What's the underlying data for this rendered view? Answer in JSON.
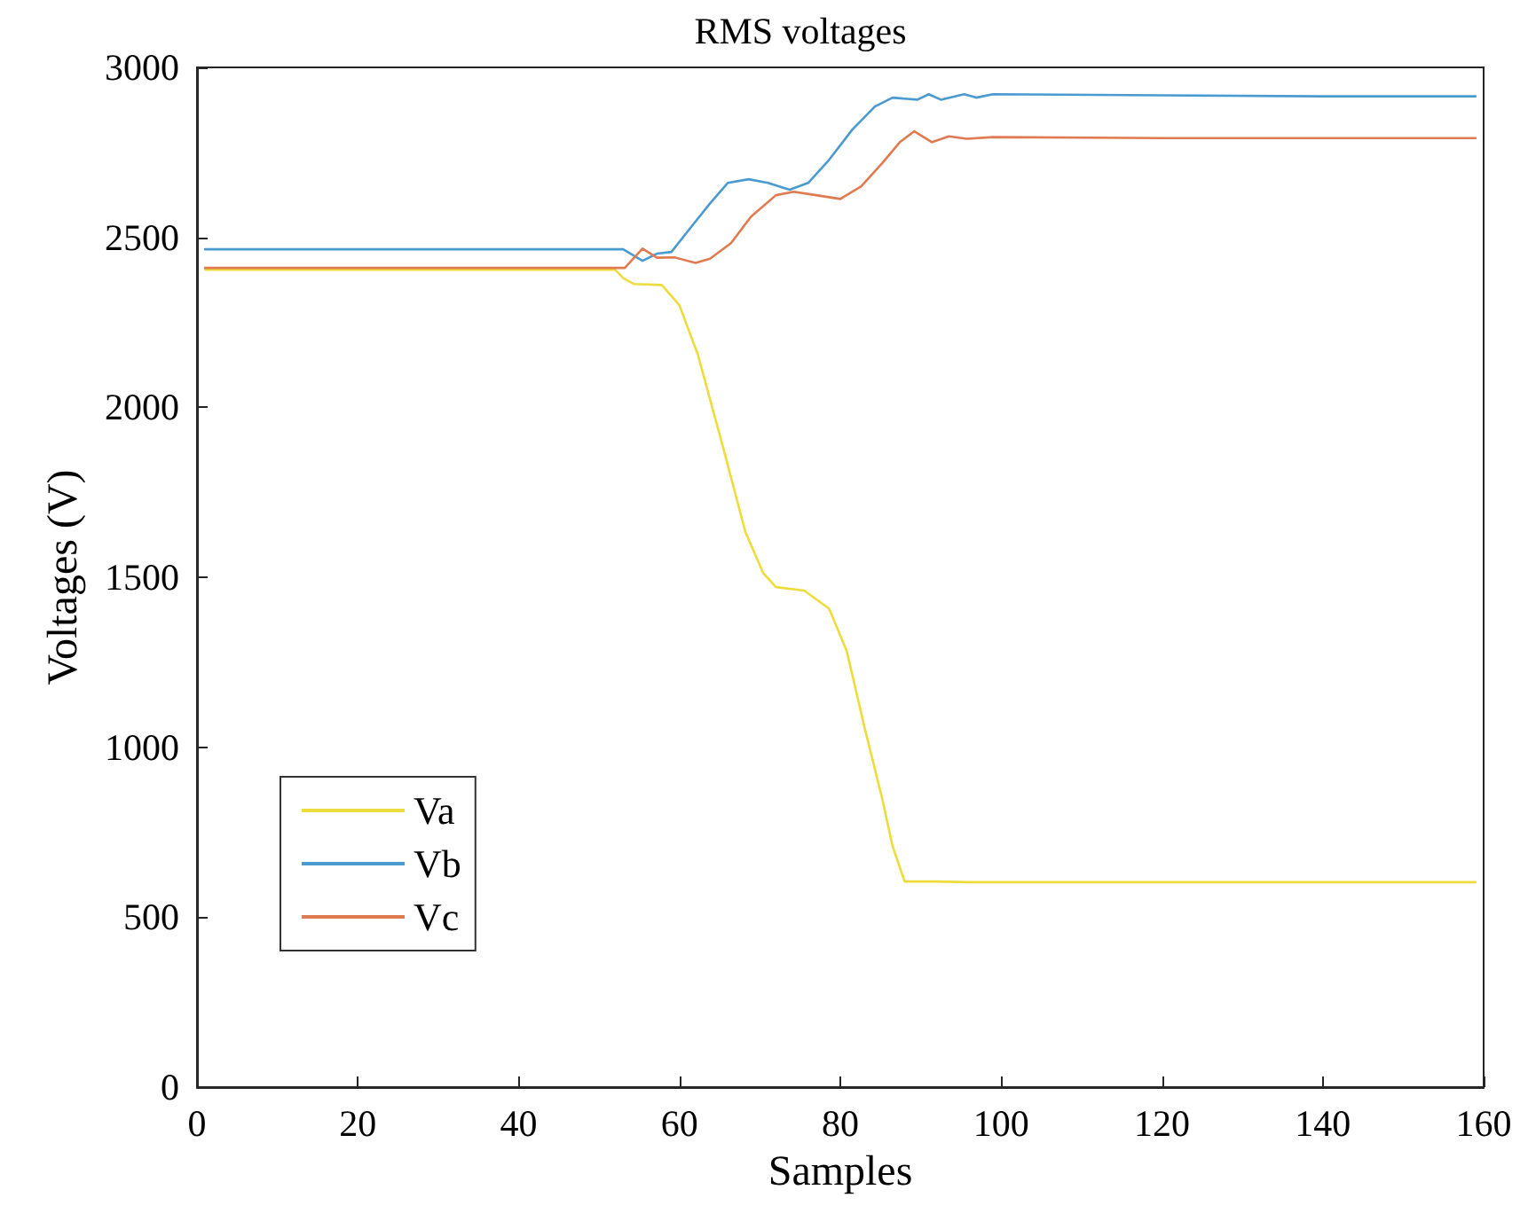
{
  "chart_data": {
    "type": "line",
    "title": "RMS voltages",
    "xlabel": "Samples",
    "ylabel": "Voltages (V)",
    "xlim": [
      0,
      160
    ],
    "xticks": [
      0,
      20,
      40,
      60,
      80,
      100,
      120,
      140,
      160
    ],
    "ylim": [
      0,
      3000
    ],
    "yticks": [
      0,
      500,
      1000,
      1500,
      2000,
      2500,
      3000
    ],
    "grid": false,
    "legend": "bottom left",
    "line_style": "solid",
    "marker": "none",
    "series": [
      {
        "name": "Va",
        "color": "#eedc3c",
        "x": [
          1,
          20,
          40,
          52,
          53,
          54.3,
          57.8,
          60,
          62.3,
          65.3,
          68.2,
          70.4,
          72,
          75.5,
          78.6,
          80.8,
          83,
          85.2,
          86.5,
          88,
          92,
          96,
          100,
          120,
          140,
          159
        ],
        "values": [
          2405,
          2405,
          2405,
          2405,
          2380,
          2363,
          2360,
          2300,
          2154,
          1893,
          1633,
          1513,
          1471,
          1461,
          1408,
          1283,
          1059,
          850,
          709,
          605,
          605,
          603,
          603,
          603,
          603,
          603
        ]
      },
      {
        "name": "Vb",
        "color": "#4a9ad0",
        "x": [
          1,
          20,
          40,
          53,
          55.4,
          57.2,
          59,
          61.6,
          63.8,
          66,
          68.6,
          71,
          73.7,
          76,
          78.6,
          81.5,
          84.3,
          86.5,
          89.6,
          91,
          92.5,
          95.4,
          96.9,
          99,
          120,
          140,
          159
        ],
        "values": [
          2465,
          2465,
          2465,
          2465,
          2431,
          2452,
          2457,
          2535,
          2600,
          2660,
          2671,
          2660,
          2640,
          2660,
          2728,
          2817,
          2885,
          2911,
          2905,
          2921,
          2905,
          2921,
          2911,
          2921,
          2918,
          2915,
          2915
        ]
      },
      {
        "name": "Vc",
        "color": "#e07a50",
        "x": [
          1,
          20,
          40,
          53.2,
          55.4,
          57.2,
          59.4,
          62,
          63.8,
          66.4,
          68.9,
          72,
          74.2,
          77,
          80,
          82.6,
          85.2,
          87.4,
          89.2,
          91.4,
          93.5,
          95.7,
          99,
          120,
          140,
          159
        ],
        "values": [
          2410,
          2410,
          2410,
          2410,
          2467,
          2440,
          2441,
          2425,
          2437,
          2483,
          2561,
          2624,
          2634,
          2624,
          2613,
          2650,
          2718,
          2780,
          2812,
          2780,
          2797,
          2790,
          2795,
          2792,
          2792,
          2792
        ]
      }
    ]
  }
}
